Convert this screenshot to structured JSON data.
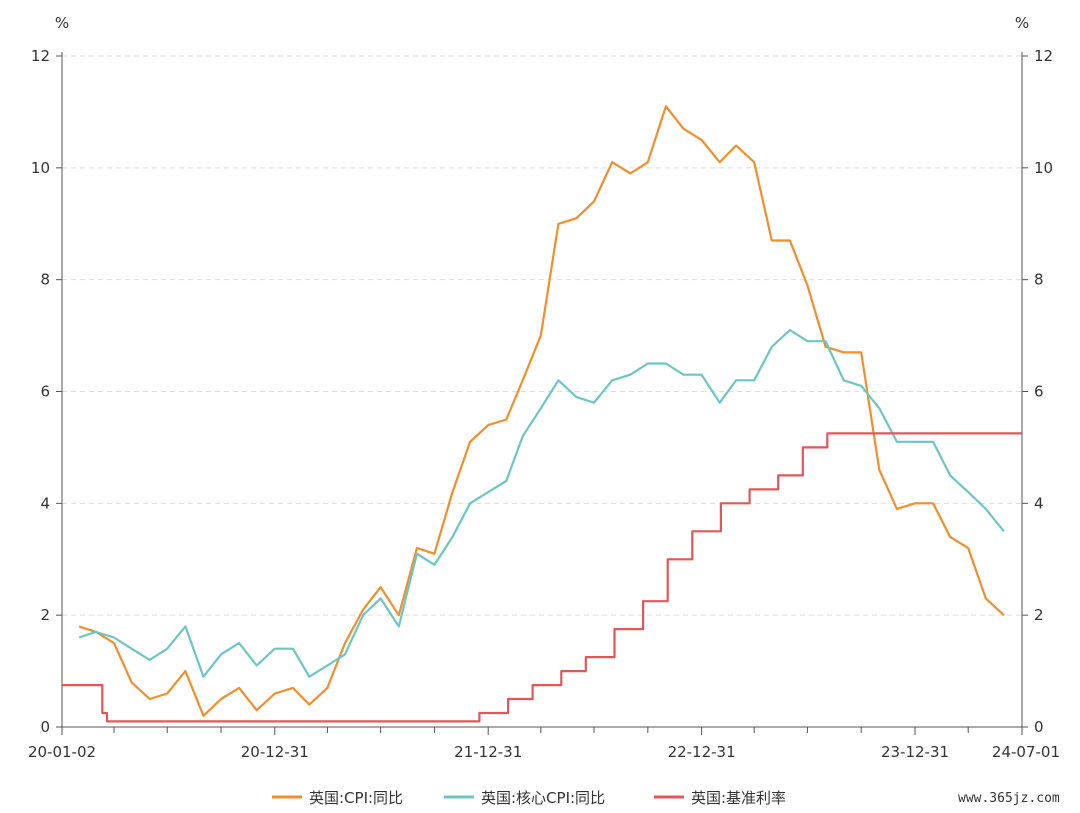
{
  "chart_data": {
    "type": "line",
    "y_unit_left": "%",
    "y_unit_right": "%",
    "ylim": [
      0,
      12
    ],
    "yticks": [
      "0",
      "2",
      "4",
      "6",
      "8",
      "10",
      "12"
    ],
    "xlim": [
      "2020-01-02",
      "2024-07-01"
    ],
    "xticks": [
      {
        "date": "2020-01-02",
        "label": "20-01-02"
      },
      {
        "date": "2020-12-31",
        "label": "20-12-31"
      },
      {
        "date": "2021-12-31",
        "label": "21-12-31"
      },
      {
        "date": "2022-12-31",
        "label": "22-12-31"
      },
      {
        "date": "2023-12-31",
        "label": "23-12-31"
      },
      {
        "date": "2024-07-01",
        "label": "24-07-01"
      }
    ],
    "minor_tick_dates": [
      "2020-03-31",
      "2020-06-30",
      "2020-09-30",
      "2021-03-31",
      "2021-06-30",
      "2021-09-30",
      "2022-03-31",
      "2022-06-30",
      "2022-09-30",
      "2023-03-31",
      "2023-06-30",
      "2023-09-30",
      "2024-03-31"
    ],
    "grid": true,
    "legend_position": "bottom",
    "series": [
      {
        "name": "英国:CPI:同比",
        "color": "#F28E2B",
        "style": "line",
        "points": [
          [
            "2020-01-31",
            1.8
          ],
          [
            "2020-02-29",
            1.7
          ],
          [
            "2020-03-31",
            1.5
          ],
          [
            "2020-04-30",
            0.8
          ],
          [
            "2020-05-31",
            0.5
          ],
          [
            "2020-06-30",
            0.6
          ],
          [
            "2020-07-31",
            1.0
          ],
          [
            "2020-08-31",
            0.2
          ],
          [
            "2020-09-30",
            0.5
          ],
          [
            "2020-10-31",
            0.7
          ],
          [
            "2020-11-30",
            0.3
          ],
          [
            "2020-12-31",
            0.6
          ],
          [
            "2021-01-31",
            0.7
          ],
          [
            "2021-02-28",
            0.4
          ],
          [
            "2021-03-31",
            0.7
          ],
          [
            "2021-04-30",
            1.5
          ],
          [
            "2021-05-31",
            2.1
          ],
          [
            "2021-06-30",
            2.5
          ],
          [
            "2021-07-31",
            2.0
          ],
          [
            "2021-08-31",
            3.2
          ],
          [
            "2021-09-30",
            3.1
          ],
          [
            "2021-10-31",
            4.2
          ],
          [
            "2021-11-30",
            5.1
          ],
          [
            "2021-12-31",
            5.4
          ],
          [
            "2022-01-31",
            5.5
          ],
          [
            "2022-02-28",
            6.2
          ],
          [
            "2022-03-31",
            7.0
          ],
          [
            "2022-04-30",
            9.0
          ],
          [
            "2022-05-31",
            9.1
          ],
          [
            "2022-06-30",
            9.4
          ],
          [
            "2022-07-31",
            10.1
          ],
          [
            "2022-08-31",
            9.9
          ],
          [
            "2022-09-30",
            10.1
          ],
          [
            "2022-10-31",
            11.1
          ],
          [
            "2022-11-30",
            10.7
          ],
          [
            "2022-12-31",
            10.5
          ],
          [
            "2023-01-31",
            10.1
          ],
          [
            "2023-02-28",
            10.4
          ],
          [
            "2023-03-31",
            10.1
          ],
          [
            "2023-04-30",
            8.7
          ],
          [
            "2023-05-31",
            8.7
          ],
          [
            "2023-06-30",
            7.9
          ],
          [
            "2023-07-31",
            6.8
          ],
          [
            "2023-08-31",
            6.7
          ],
          [
            "2023-09-30",
            6.7
          ],
          [
            "2023-10-31",
            4.6
          ],
          [
            "2023-11-30",
            3.9
          ],
          [
            "2023-12-31",
            4.0
          ],
          [
            "2024-01-31",
            4.0
          ],
          [
            "2024-02-29",
            3.4
          ],
          [
            "2024-03-31",
            3.2
          ],
          [
            "2024-04-30",
            2.3
          ],
          [
            "2024-05-31",
            2.0
          ]
        ]
      },
      {
        "name": "英国:核心CPI:同比",
        "color": "#6CC6C4",
        "style": "line",
        "points": [
          [
            "2020-01-31",
            1.6
          ],
          [
            "2020-02-29",
            1.7
          ],
          [
            "2020-03-31",
            1.6
          ],
          [
            "2020-04-30",
            1.4
          ],
          [
            "2020-05-31",
            1.2
          ],
          [
            "2020-06-30",
            1.4
          ],
          [
            "2020-07-31",
            1.8
          ],
          [
            "2020-08-31",
            0.9
          ],
          [
            "2020-09-30",
            1.3
          ],
          [
            "2020-10-31",
            1.5
          ],
          [
            "2020-11-30",
            1.1
          ],
          [
            "2020-12-31",
            1.4
          ],
          [
            "2021-01-31",
            1.4
          ],
          [
            "2021-02-28",
            0.9
          ],
          [
            "2021-03-31",
            1.1
          ],
          [
            "2021-04-30",
            1.3
          ],
          [
            "2021-05-31",
            2.0
          ],
          [
            "2021-06-30",
            2.3
          ],
          [
            "2021-07-31",
            1.8
          ],
          [
            "2021-08-31",
            3.1
          ],
          [
            "2021-09-30",
            2.9
          ],
          [
            "2021-10-31",
            3.4
          ],
          [
            "2021-11-30",
            4.0
          ],
          [
            "2021-12-31",
            4.2
          ],
          [
            "2022-01-31",
            4.4
          ],
          [
            "2022-02-28",
            5.2
          ],
          [
            "2022-03-31",
            5.7
          ],
          [
            "2022-04-30",
            6.2
          ],
          [
            "2022-05-31",
            5.9
          ],
          [
            "2022-06-30",
            5.8
          ],
          [
            "2022-07-31",
            6.2
          ],
          [
            "2022-08-31",
            6.3
          ],
          [
            "2022-09-30",
            6.5
          ],
          [
            "2022-10-31",
            6.5
          ],
          [
            "2022-11-30",
            6.3
          ],
          [
            "2022-12-31",
            6.3
          ],
          [
            "2023-01-31",
            5.8
          ],
          [
            "2023-02-28",
            6.2
          ],
          [
            "2023-03-31",
            6.2
          ],
          [
            "2023-04-30",
            6.8
          ],
          [
            "2023-05-31",
            7.1
          ],
          [
            "2023-06-30",
            6.9
          ],
          [
            "2023-07-31",
            6.9
          ],
          [
            "2023-08-31",
            6.2
          ],
          [
            "2023-09-30",
            6.1
          ],
          [
            "2023-10-31",
            5.7
          ],
          [
            "2023-11-30",
            5.1
          ],
          [
            "2023-12-31",
            5.1
          ],
          [
            "2024-01-31",
            5.1
          ],
          [
            "2024-02-29",
            4.5
          ],
          [
            "2024-03-31",
            4.2
          ],
          [
            "2024-04-30",
            3.9
          ],
          [
            "2024-05-31",
            3.5
          ]
        ]
      },
      {
        "name": "英国:基准利率",
        "color": "#E15759",
        "style": "step",
        "points": [
          [
            "2020-01-02",
            0.75
          ],
          [
            "2020-03-11",
            0.25
          ],
          [
            "2020-03-19",
            0.1
          ],
          [
            "2021-12-16",
            0.25
          ],
          [
            "2022-02-03",
            0.5
          ],
          [
            "2022-03-17",
            0.75
          ],
          [
            "2022-05-05",
            1.0
          ],
          [
            "2022-06-16",
            1.25
          ],
          [
            "2022-08-04",
            1.75
          ],
          [
            "2022-09-22",
            2.25
          ],
          [
            "2022-11-03",
            3.0
          ],
          [
            "2022-12-15",
            3.5
          ],
          [
            "2023-02-02",
            4.0
          ],
          [
            "2023-03-23",
            4.25
          ],
          [
            "2023-05-11",
            4.5
          ],
          [
            "2023-06-22",
            5.0
          ],
          [
            "2023-08-03",
            5.25
          ],
          [
            "2024-07-01",
            5.25
          ]
        ]
      }
    ]
  },
  "watermark": "www.365jz.com"
}
